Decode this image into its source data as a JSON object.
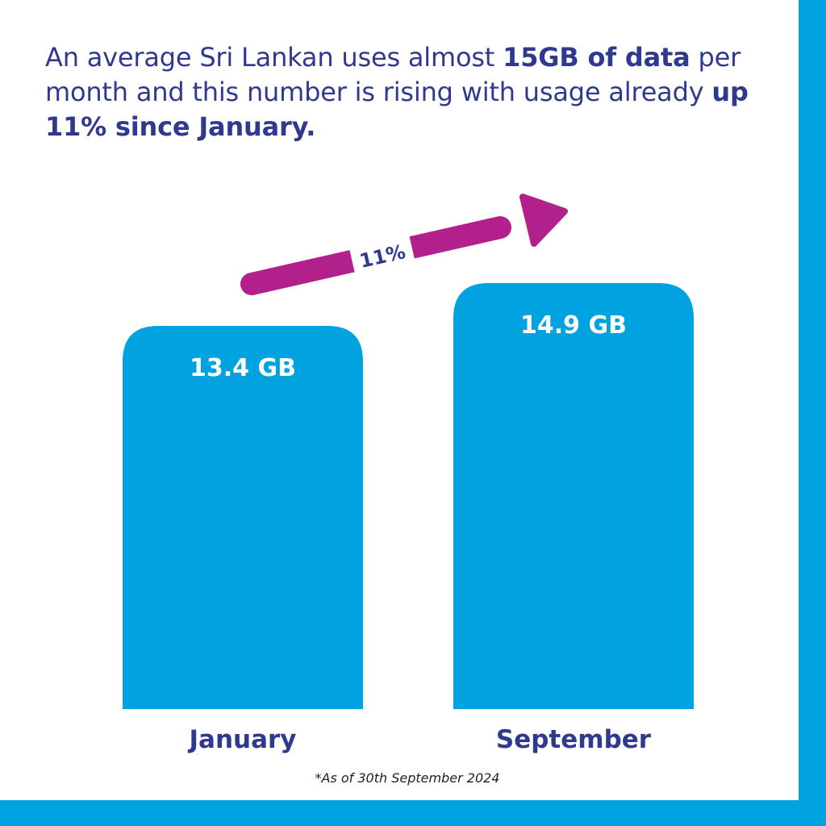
{
  "headline": {
    "part1": "An average Sri Lankan uses almost ",
    "bold1": "15GB of data",
    "part2": " per month and this number is rising with usage already ",
    "bold2": "up 11% since January."
  },
  "footnote": "*As of 30th September 2024",
  "colors": {
    "bar": "#00a3df",
    "frame": "#00a3df",
    "text": "#2f3a8f",
    "arrow": "#b2208c",
    "arrow_label": "#ffffff"
  },
  "chart_data": {
    "type": "bar",
    "categories": [
      "January",
      "September"
    ],
    "values": [
      13.4,
      14.9
    ],
    "value_labels": [
      "13.4 GB",
      "14.9 GB"
    ],
    "unit": "GB",
    "annotation": {
      "label": "11%",
      "from": "January",
      "to": "September"
    }
  }
}
